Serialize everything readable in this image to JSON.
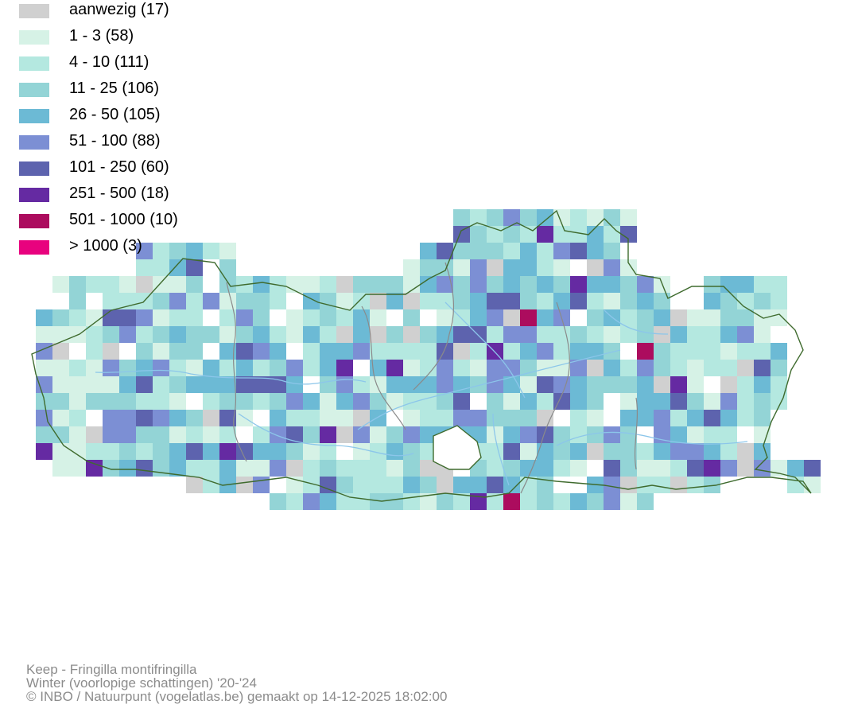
{
  "legend": [
    {
      "label": "aanwezig (17)",
      "color": "#d0d0d0"
    },
    {
      "label": "1 - 3 (58)",
      "color": "#d6f2e6"
    },
    {
      "label": "4 - 10 (111)",
      "color": "#b4e8e0"
    },
    {
      "label": "11 - 25 (106)",
      "color": "#93d4d6"
    },
    {
      "label": "26 - 50 (105)",
      "color": "#6cbad5"
    },
    {
      "label": "51 - 100 (88)",
      "color": "#7c8fd4"
    },
    {
      "label": "101 - 250 (60)",
      "color": "#5d63ae"
    },
    {
      "label": "251 - 500 (18)",
      "color": "#652aa2"
    },
    {
      "label": "501 - 1000 (10)",
      "color": "#ac0c5e"
    },
    {
      "label": "> 1000 (3)",
      "color": "#e8027e"
    }
  ],
  "footer": {
    "species": "Keep - Fringilla montifringilla",
    "period": "Winter (voorlopige schattingen) '20-'24",
    "credit": "© INBO / Natuurpunt (vogelatlas.be) gemaakt op 14-12-2025 18:02:00"
  },
  "map_colors": {
    "outline": "#3f6b2e",
    "river": "#8cc6ea",
    "district_border": "#8a8a8a"
  }
}
